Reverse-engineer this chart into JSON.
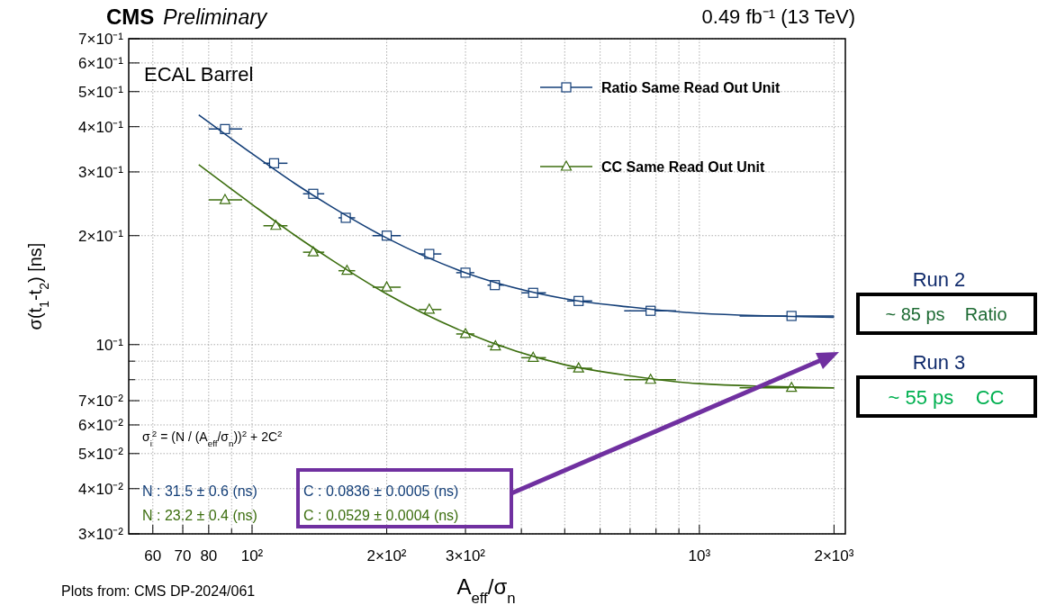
{
  "chart_data": {
    "type": "scatter",
    "title": "CMS",
    "subtitle": "Preliminary",
    "xlabel": "A$_{eff}$/σ$_{n}$",
    "ylabel": "σ(t$_{1}$-t$_{2}$) [ns]",
    "log": "xy",
    "grid": true,
    "legend": "top right",
    "xlim": [
      53,
      2120
    ],
    "ylim": [
      0.03,
      0.7
    ],
    "xticks": [
      60,
      70,
      80,
      {
        "value": 90,
        "label": null
      },
      {
        "value": 100,
        "label": "10²"
      },
      {
        "value": 200,
        "label": "2×10²"
      },
      {
        "value": 300,
        "label": "3×10²"
      },
      {
        "value": 400,
        "label": null
      },
      {
        "value": 500,
        "label": null
      },
      {
        "value": 600,
        "label": null
      },
      {
        "value": 700,
        "label": null
      },
      {
        "value": 800,
        "label": null
      },
      {
        "value": 900,
        "label": null
      },
      {
        "value": 1000,
        "label": "10³"
      },
      {
        "value": 2000,
        "label": "2×10³"
      }
    ],
    "yticks": [
      {
        "value": 0.03,
        "label": "3×10⁻²"
      },
      {
        "value": 0.04,
        "label": "4×10⁻²"
      },
      {
        "value": 0.05,
        "label": "5×10⁻²"
      },
      {
        "value": 0.06,
        "label": "6×10⁻²"
      },
      {
        "value": 0.07,
        "label": "7×10⁻²"
      },
      {
        "value": 0.08,
        "label": null
      },
      {
        "value": 0.09,
        "label": null
      },
      {
        "value": 0.1,
        "label": "10⁻¹"
      },
      {
        "value": 0.2,
        "label": "2×10⁻¹"
      },
      {
        "value": 0.3,
        "label": "3×10⁻¹"
      },
      {
        "value": 0.4,
        "label": "4×10⁻¹"
      },
      {
        "value": 0.5,
        "label": "5×10⁻¹"
      },
      {
        "value": 0.6,
        "label": "6×10⁻¹"
      },
      {
        "value": 0.7,
        "label": "7×10⁻¹"
      }
    ],
    "series": [
      {
        "name": "Ratio Same Read Out Unit",
        "marker": "square",
        "color": "#143f78",
        "x": [
          87,
          112,
          137,
          162,
          200,
          249,
          300,
          349,
          425,
          537,
          778,
          1607
        ],
        "values": [
          0.394,
          0.317,
          0.261,
          0.224,
          0.2,
          0.178,
          0.158,
          0.146,
          0.139,
          0.132,
          0.124,
          0.12
        ],
        "xerrors": [
          [
            80,
            95
          ],
          [
            106,
            120
          ],
          [
            130,
            145
          ],
          [
            156,
            170
          ],
          [
            186,
            215
          ],
          [
            236,
            265
          ],
          [
            286,
            314
          ],
          [
            336,
            366
          ],
          [
            400,
            454
          ],
          [
            506,
            576
          ],
          [
            679,
            887
          ],
          [
            1230,
            2000
          ]
        ]
      },
      {
        "name": "CC Same Read Out Unit",
        "marker": "triangle",
        "color": "#3c6e0f",
        "x": [
          87,
          113,
          137,
          163,
          200,
          249,
          300,
          350,
          425,
          537,
          778,
          1607
        ],
        "values": [
          0.251,
          0.213,
          0.18,
          0.16,
          0.144,
          0.125,
          0.107,
          0.099,
          0.092,
          0.086,
          0.08,
          0.076
        ],
        "xerrors": [
          [
            80,
            95
          ],
          [
            106,
            120
          ],
          [
            130,
            145
          ],
          [
            156,
            170
          ],
          [
            186,
            215
          ],
          [
            236,
            265
          ],
          [
            286,
            314
          ],
          [
            336,
            366
          ],
          [
            400,
            454
          ],
          [
            506,
            576
          ],
          [
            679,
            887
          ],
          [
            1230,
            2000
          ]
        ]
      },
      {
        "type": "line",
        "color": "#143f78",
        "x": [
          76,
          100,
          125,
          150,
          200,
          300,
          500,
          700,
          1000,
          2000
        ],
        "values": [
          0.431,
          0.337,
          0.278,
          0.241,
          0.197,
          0.158,
          0.134,
          0.127,
          0.122,
          0.119
        ]
      },
      {
        "type": "line",
        "color": "#3c6e0f",
        "x": [
          76,
          100,
          125,
          150,
          200,
          300,
          500,
          700,
          1000,
          2000
        ],
        "values": [
          0.314,
          0.244,
          0.2,
          0.172,
          0.138,
          0.108,
          0.088,
          0.082,
          0.078,
          0.076
        ]
      }
    ],
    "annotations": [
      "0.49 fb⁻¹ (13 TeV)",
      "ECAL Barrel",
      "σ$_{i}$$^{2}$ = (N / (A$_{eff}$/σ$_{n}$))$^{2}$ + 2C$^{2}$",
      "N : 31.5 ± 0.6 (ns)",
      "N : 23.2 ± 0.4 (ns)",
      "C : 0.0836 ± 0.0005 (ns)",
      "C : 0.0529 ± 0.0004 (ns)",
      "Plots from: CMS DP-2024/061",
      "Run 2",
      "~ 85 ps    Ratio",
      "Run 3",
      "~ 55 ps    CC"
    ]
  }
}
